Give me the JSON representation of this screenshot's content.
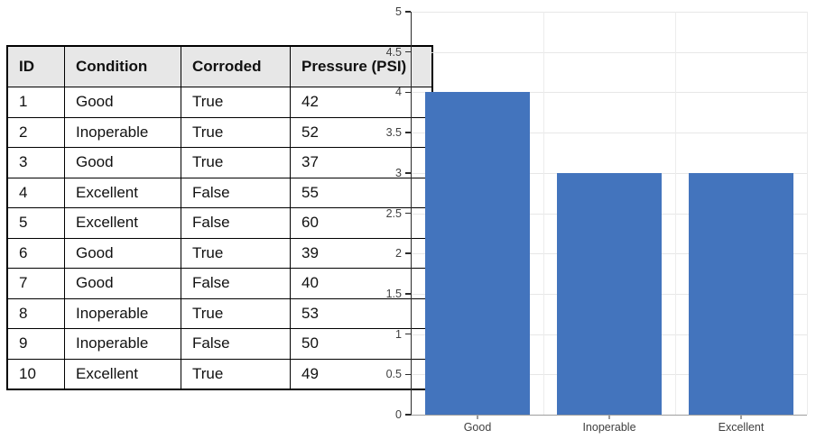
{
  "table": {
    "columns": [
      "ID",
      "Condition",
      "Corroded",
      "Pressure (PSI)"
    ],
    "rows": [
      [
        "1",
        "Good",
        "True",
        "42"
      ],
      [
        "2",
        "Inoperable",
        "True",
        "52"
      ],
      [
        "3",
        "Good",
        "True",
        "37"
      ],
      [
        "4",
        "Excellent",
        "False",
        "55"
      ],
      [
        "5",
        "Excellent",
        "False",
        "60"
      ],
      [
        "6",
        "Good",
        "True",
        "39"
      ],
      [
        "7",
        "Good",
        "False",
        "40"
      ],
      [
        "8",
        "Inoperable",
        "True",
        "53"
      ],
      [
        "9",
        "Inoperable",
        "False",
        "50"
      ],
      [
        "10",
        "Excellent",
        "True",
        "49"
      ]
    ]
  },
  "chart_data": {
    "type": "bar",
    "title": "",
    "xlabel": "",
    "ylabel": "",
    "categories": [
      "Good",
      "Inoperable",
      "Excellent"
    ],
    "values": [
      4,
      3,
      3
    ],
    "ylim": [
      0,
      5
    ],
    "ytick_step": 0.5,
    "ytick_labels": [
      "0",
      "0.5",
      "1",
      "1.5",
      "2",
      "2.5",
      "3",
      "3.5",
      "4",
      "4.5",
      "5"
    ],
    "grid": true,
    "legend_position": "none",
    "bar_width_fraction": 0.8
  },
  "colors": {
    "bar": "#4374BD",
    "h_gridline": "#E7E7E7",
    "v_gridline": "#ECECEC",
    "y_axis_line": "#2B2B2B",
    "x_baseline": "#9E9E9E",
    "tick_label": "#3F3F3F",
    "table_border": "#000000",
    "table_header_bg": "#E7E7E7"
  }
}
